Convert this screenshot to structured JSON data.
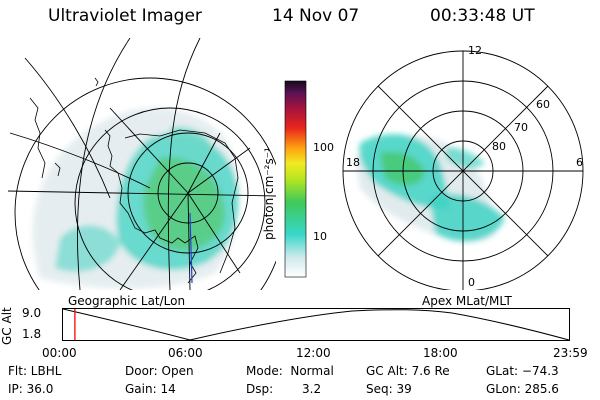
{
  "header": {
    "instrument": "Ultraviolet Imager",
    "date": "14 Nov 07",
    "time": "00:33:48 UT"
  },
  "colorbar": {
    "unit_label": "photon cm⁻²s⁻¹",
    "ticks": [
      "100",
      "10"
    ]
  },
  "left_panel": {
    "caption": "Geographic Lat/Lon"
  },
  "right_panel": {
    "caption": "Apex MLat/MLT",
    "mlat_labels": [
      "80",
      "70",
      "60"
    ],
    "mlt_labels": [
      "12",
      "18",
      "6",
      "0"
    ]
  },
  "timeline": {
    "axis_label": "GC Alt",
    "y_ticks": [
      "9.0",
      "1.8"
    ],
    "x_ticks": [
      "00:00",
      "06:00",
      "12:00",
      "18:00",
      "23:59"
    ],
    "current_fraction": 0.0235
  },
  "status": {
    "flt": "Flt: LBHL",
    "ip": "IP: 36.0",
    "door": "Door: Open",
    "gain": "Gain: 14",
    "mode": "Mode:  Normal",
    "dsp_label": "Dsp:",
    "dsp_value": "3.2",
    "gc_alt": "GC Alt: 7.6 Re",
    "seq": "Seq: 39",
    "glat": "GLat: −74.3",
    "glon": "GLon: 285.6"
  },
  "colors": {
    "marker": "#ff0000",
    "cyan": "#37d7c8",
    "green": "#41c85a",
    "light": "#dde8ec"
  }
}
